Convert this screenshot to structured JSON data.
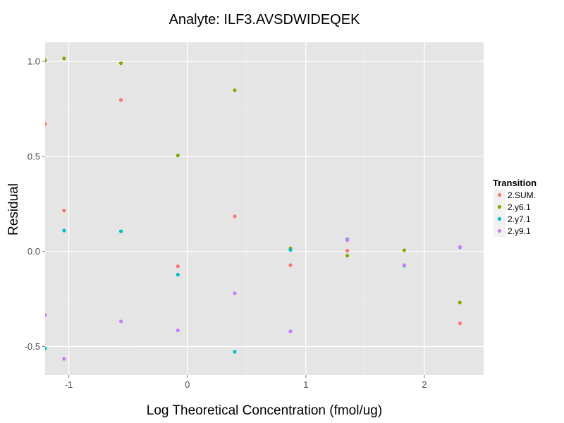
{
  "chart_data": {
    "type": "scatter",
    "title": "Analyte: ILF3.AVSDWIDEQEK",
    "xlabel": "Log Theoretical Concentration (fmol/ug)",
    "ylabel": "Residual",
    "xlim": [
      -1.2,
      2.5
    ],
    "ylim": [
      -0.65,
      1.1
    ],
    "x_ticks": [
      -1,
      0,
      1,
      2
    ],
    "x_tick_labels": [
      "-1",
      "0",
      "1",
      "2"
    ],
    "y_ticks": [
      -0.5,
      0.0,
      0.5,
      1.0
    ],
    "y_tick_labels": [
      "-0.5",
      "0.0",
      "0.5",
      "1.0"
    ],
    "grid": true,
    "legend": {
      "title": "Transition",
      "position": "right"
    },
    "series": [
      {
        "name": "2.SUM.",
        "color": "#F8766D",
        "points": [
          [
            -1.2,
            0.67
          ],
          [
            -1.04,
            0.215
          ],
          [
            -0.56,
            0.797
          ],
          [
            -0.08,
            -0.078
          ],
          [
            0.4,
            0.185
          ],
          [
            0.87,
            -0.072
          ],
          [
            1.35,
            0.004
          ],
          [
            1.83,
            -0.072
          ],
          [
            2.3,
            -0.378
          ]
        ]
      },
      {
        "name": "2.y6.1",
        "color": "#7CAE00",
        "points": [
          [
            -1.2,
            1.005
          ],
          [
            -1.04,
            1.015
          ],
          [
            -0.56,
            0.99
          ],
          [
            -0.08,
            0.505
          ],
          [
            0.4,
            0.848
          ],
          [
            0.87,
            0.016
          ],
          [
            1.35,
            -0.022
          ],
          [
            1.83,
            0.006
          ],
          [
            2.3,
            -0.268
          ]
        ]
      },
      {
        "name": "2.y7.1",
        "color": "#00BFC4",
        "points": [
          [
            -1.2,
            -0.51
          ],
          [
            -1.04,
            0.11
          ],
          [
            -0.56,
            0.106
          ],
          [
            -0.08,
            -0.122
          ],
          [
            0.4,
            -0.528
          ],
          [
            0.87,
            0.008
          ],
          [
            1.35,
            0.064
          ],
          [
            1.83,
            -0.075
          ],
          [
            2.3,
            0.022
          ]
        ]
      },
      {
        "name": "2.y9.1",
        "color": "#C77CFF",
        "points": [
          [
            -1.2,
            -0.335
          ],
          [
            -1.04,
            -0.565
          ],
          [
            -0.56,
            -0.368
          ],
          [
            -0.08,
            -0.415
          ],
          [
            0.4,
            -0.22
          ],
          [
            0.87,
            -0.42
          ],
          [
            1.35,
            0.06
          ],
          [
            1.83,
            -0.072
          ],
          [
            2.3,
            0.022
          ]
        ]
      }
    ]
  },
  "colors": {
    "panel_background": "#e5e5e5",
    "grid_major": "#ffffff",
    "grid_minor": "#f2f2f2",
    "legend_key_background": "#f2f2f2"
  }
}
